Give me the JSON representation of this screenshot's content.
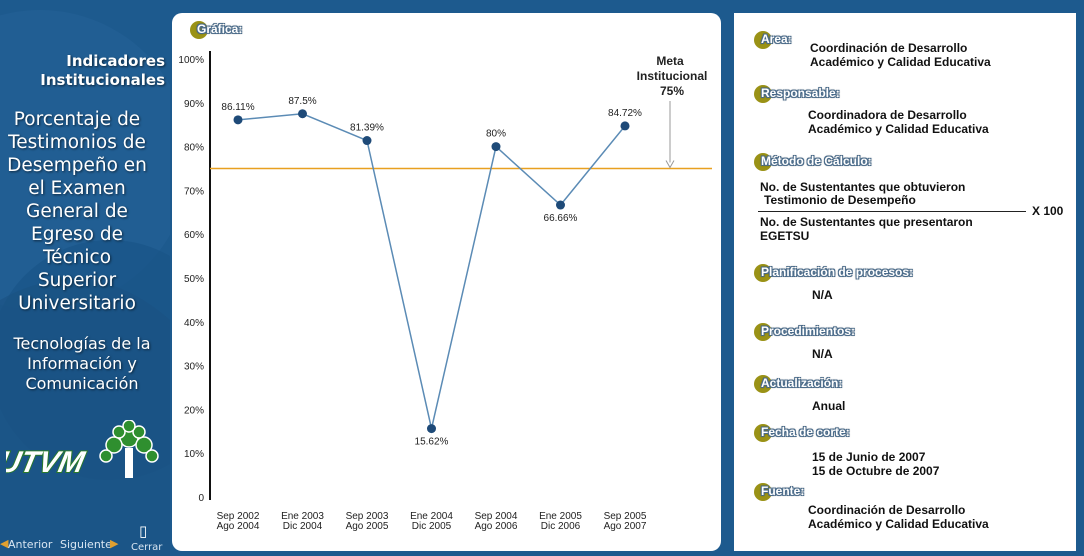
{
  "sidebar": {
    "indicadores": "Indicadores Institucionales",
    "title": "Porcentaje de Testimonios de Desempeño en el Examen General de Egreso de Técnico Superior Universitario",
    "program": "Tecnologías de la Información y Comunicación",
    "logo_text": "UTVM",
    "nav": {
      "prev": "Anterior",
      "next": "Siguiente",
      "close": "Cerrar"
    }
  },
  "chart_panel_label": "Gráfica:",
  "chart_data": {
    "type": "line",
    "categories": [
      [
        "Sep 2002",
        "Ago 2004"
      ],
      [
        "Ene 2003",
        "Dic 2004"
      ],
      [
        "Sep 2003",
        "Ago 2005"
      ],
      [
        "Ene 2004",
        "Dic 2005"
      ],
      [
        "Sep 2004",
        "Ago 2006"
      ],
      [
        "Ene 2005",
        "Dic 2006"
      ],
      [
        "Sep 2005",
        "Ago 2007"
      ]
    ],
    "values": [
      86.11,
      87.5,
      81.39,
      15.62,
      80,
      66.66,
      84.72
    ],
    "data_labels": [
      "86.11%",
      "87.5%",
      "81.39%",
      "15.62%",
      "80%",
      "66.66%",
      "84.72%"
    ],
    "ylim": [
      0,
      100
    ],
    "yticks": [
      "0",
      "10%",
      "20%",
      "30%",
      "40%",
      "50%",
      "60%",
      "70%",
      "80%",
      "90%",
      "100%"
    ],
    "target": {
      "label_line1": "Meta",
      "label_line2": "Institucional",
      "value_label": "75%",
      "value": 75
    },
    "colors": {
      "line": "#5b8bb5",
      "marker": "#1e4a78",
      "target": "#e8a020"
    }
  },
  "info": {
    "area": {
      "label": "Area:",
      "value": [
        "Coordinación  de Desarrollo",
        "Académico  y Calidad Educativa"
      ]
    },
    "responsable": {
      "label": "Responsable:",
      "value": [
        "Coordinadora  de Desarrollo",
        "Académico  y Calidad Educativa"
      ]
    },
    "metodo": {
      "label": "Método de Cálculo:",
      "numerator": [
        "No. de Sustentantes que obtuvieron",
        "Testimonio de Desempeño"
      ],
      "denominator": [
        "No. de Sustentantes que presentaron",
        "EGETSU"
      ],
      "multiplier": "X 100"
    },
    "planificacion": {
      "label": "Planificación de procesos:",
      "value": "N/A"
    },
    "procedimientos": {
      "label": "Procedimientos:",
      "value": "N/A"
    },
    "actualizacion": {
      "label": "Actualización:",
      "value": "Anual"
    },
    "fecha": {
      "label": "Fecha de corte:",
      "value": [
        "15 de Junio de 2007",
        "15 de Octubre de 2007"
      ]
    },
    "fuente": {
      "label": "Fuente:",
      "value": [
        "Coordinación  de Desarrollo",
        "Académico  y Calidad Educativa"
      ]
    }
  }
}
